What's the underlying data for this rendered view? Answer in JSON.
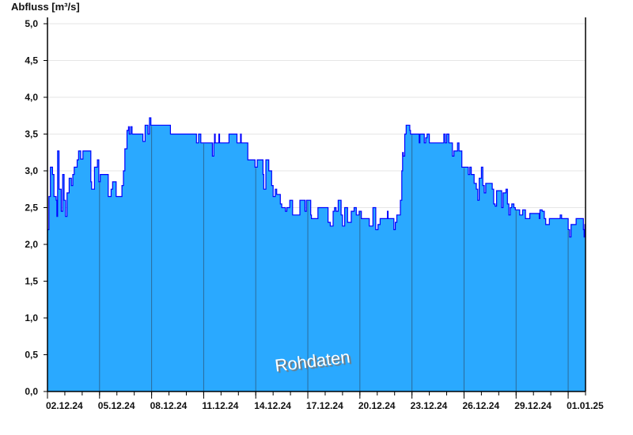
{
  "chart_data": {
    "type": "area",
    "ylabel": "Abfluss [m³/s]",
    "ylim": [
      0,
      5
    ],
    "yticks": [
      "0,0",
      "0,5",
      "1,0",
      "1,5",
      "2,0",
      "2,5",
      "3,0",
      "3,5",
      "4,0",
      "4,5",
      "5,0"
    ],
    "xlim": [
      "02.12.24 00:00",
      "02.01.25 00:00"
    ],
    "xticks": [
      "02.12.24",
      "05.12.24",
      "08.12.24",
      "11.12.24",
      "14.12.24",
      "17.12.24",
      "20.12.24",
      "23.12.24",
      "26.12.24",
      "29.12.24",
      "01.01.25"
    ],
    "grid": true,
    "annotation": "Rohdaten",
    "colors": {
      "fill": "#2aa9ff",
      "line": "#0000ff",
      "grid": "#e6e6e6",
      "major_line": "#2a6a9a"
    },
    "series": [
      {
        "points": [
          [
            "02.12.24 00:00",
            2.2
          ],
          [
            "02.12.24 02:00",
            2.65
          ],
          [
            "02.12.24 04:00",
            3.05
          ],
          [
            "02.12.24 07:00",
            2.95
          ],
          [
            "02.12.24 09:00",
            2.65
          ],
          [
            "02.12.24 12:00",
            2.6
          ],
          [
            "02.12.24 13:00",
            2.38
          ],
          [
            "02.12.24 14:00",
            3.27
          ],
          [
            "02.12.24 16:00",
            2.75
          ],
          [
            "02.12.24 19:00",
            2.45
          ],
          [
            "02.12.24 21:00",
            2.95
          ],
          [
            "02.12.24 23:00",
            2.6
          ],
          [
            "03.12.24 01:00",
            2.38
          ],
          [
            "03.12.24 03:00",
            2.7
          ],
          [
            "03.12.24 06:00",
            2.9
          ],
          [
            "03.12.24 09:00",
            2.8
          ],
          [
            "03.12.24 11:00",
            2.95
          ],
          [
            "03.12.24 13:00",
            3.05
          ],
          [
            "03.12.24 17:00",
            3.15
          ],
          [
            "03.12.24 19:00",
            3.27
          ],
          [
            "03.12.24 22:00",
            3.16
          ],
          [
            "04.12.24 01:00",
            3.27
          ],
          [
            "04.12.24 10:00",
            3.27
          ],
          [
            "04.12.24 12:00",
            2.85
          ],
          [
            "04.12.24 13:00",
            2.75
          ],
          [
            "04.12.24 17:00",
            3.05
          ],
          [
            "04.12.24 21:00",
            3.15
          ],
          [
            "04.12.24 23:00",
            2.85
          ],
          [
            "05.12.24 01:00",
            2.95
          ],
          [
            "05.12.24 09:00",
            2.95
          ],
          [
            "05.12.24 12:00",
            2.65
          ],
          [
            "05.12.24 16:00",
            2.75
          ],
          [
            "05.12.24 18:00",
            2.85
          ],
          [
            "05.12.24 21:00",
            2.85
          ],
          [
            "05.12.24 23:00",
            2.65
          ],
          [
            "06.12.24 05:00",
            2.65
          ],
          [
            "06.12.24 07:00",
            2.8
          ],
          [
            "06.12.24 09:00",
            3.0
          ],
          [
            "06.12.24 11:00",
            3.3
          ],
          [
            "06.12.24 14:00",
            3.55
          ],
          [
            "06.12.24 16:00",
            3.6
          ],
          [
            "06.12.24 17:00",
            3.5
          ],
          [
            "06.12.24 19:00",
            3.6
          ],
          [
            "06.12.24 21:00",
            3.5
          ],
          [
            "07.12.24 09:00",
            3.5
          ],
          [
            "07.12.24 12:00",
            3.4
          ],
          [
            "07.12.24 15:00",
            3.62
          ],
          [
            "07.12.24 17:00",
            3.62
          ],
          [
            "07.12.24 19:00",
            3.5
          ],
          [
            "07.12.24 21:00",
            3.72
          ],
          [
            "07.12.24 23:00",
            3.62
          ],
          [
            "09.12.24 00:00",
            3.62
          ],
          [
            "09.12.24 02:00",
            3.5
          ],
          [
            "10.12.24 12:00",
            3.5
          ],
          [
            "10.12.24 14:00",
            3.38
          ],
          [
            "10.12.24 17:00",
            3.5
          ],
          [
            "10.12.24 20:00",
            3.38
          ],
          [
            "11.12.24 11:00",
            3.38
          ],
          [
            "11.12.24 12:00",
            3.2
          ],
          [
            "11.12.24 14:00",
            3.38
          ],
          [
            "11.12.24 15:00",
            3.5
          ],
          [
            "11.12.24 16:00",
            3.38
          ],
          [
            "11.12.24 21:00",
            3.5
          ],
          [
            "11.12.24 22:00",
            3.38
          ],
          [
            "12.12.24 11:00",
            3.5
          ],
          [
            "12.12.24 20:00",
            3.5
          ],
          [
            "12.12.24 22:00",
            3.38
          ],
          [
            "13.12.24 02:00",
            3.38
          ],
          [
            "13.12.24 03:00",
            3.5
          ],
          [
            "13.12.24 04:00",
            3.38
          ],
          [
            "13.12.24 11:00",
            3.38
          ],
          [
            "13.12.24 13:00",
            3.15
          ],
          [
            "13.12.24 23:00",
            3.05
          ],
          [
            "14.12.24 02:00",
            3.15
          ],
          [
            "14.12.24 10:00",
            2.95
          ],
          [
            "14.12.24 11:00",
            2.75
          ],
          [
            "14.12.24 14:00",
            3.15
          ],
          [
            "14.12.24 18:00",
            3.0
          ],
          [
            "14.12.24 22:00",
            2.8
          ],
          [
            "15.12.24 00:00",
            2.65
          ],
          [
            "15.12.24 03:00",
            2.75
          ],
          [
            "15.12.24 05:00",
            2.68
          ],
          [
            "15.12.24 10:00",
            2.55
          ],
          [
            "15.12.24 12:00",
            2.5
          ],
          [
            "15.12.24 17:00",
            2.45
          ],
          [
            "15.12.24 19:00",
            2.5
          ],
          [
            "15.12.24 23:00",
            2.6
          ],
          [
            "16.12.24 03:00",
            2.4
          ],
          [
            "16.12.24 13:00",
            2.6
          ],
          [
            "16.12.24 20:00",
            2.45
          ],
          [
            "16.12.24 22:00",
            2.6
          ],
          [
            "17.12.24 04:00",
            2.4
          ],
          [
            "17.12.24 05:00",
            2.35
          ],
          [
            "17.12.24 12:00",
            2.35
          ],
          [
            "17.12.24 14:00",
            2.5
          ],
          [
            "18.12.24 01:00",
            2.5
          ],
          [
            "18.12.24 04:00",
            2.3
          ],
          [
            "18.12.24 07:00",
            2.25
          ],
          [
            "18.12.24 11:00",
            2.45
          ],
          [
            "18.12.24 13:00",
            2.5
          ],
          [
            "18.12.24 15:00",
            2.45
          ],
          [
            "18.12.24 18:00",
            2.6
          ],
          [
            "18.12.24 22:00",
            2.4
          ],
          [
            "19.12.24 00:00",
            2.25
          ],
          [
            "19.12.24 03:00",
            2.5
          ],
          [
            "19.12.24 07:00",
            2.3
          ],
          [
            "19.12.24 12:00",
            2.45
          ],
          [
            "19.12.24 16:00",
            2.5
          ],
          [
            "19.12.24 19:00",
            2.4
          ],
          [
            "19.12.24 23:00",
            2.45
          ],
          [
            "20.12.24 02:00",
            2.35
          ],
          [
            "20.12.24 10:00",
            2.35
          ],
          [
            "20.12.24 13:00",
            2.25
          ],
          [
            "20.12.24 17:00",
            2.25
          ],
          [
            "20.12.24 18:00",
            2.5
          ],
          [
            "20.12.24 22:00",
            2.2
          ],
          [
            "21.12.24 01:00",
            2.27
          ],
          [
            "21.12.24 04:00",
            2.35
          ],
          [
            "21.12.24 12:00",
            2.35
          ],
          [
            "21.12.24 14:00",
            2.45
          ],
          [
            "21.12.24 15:00",
            2.35
          ],
          [
            "21.12.24 21:00",
            2.35
          ],
          [
            "21.12.24 23:00",
            2.2
          ],
          [
            "22.12.24 01:00",
            2.3
          ],
          [
            "22.12.24 03:00",
            2.4
          ],
          [
            "22.12.24 05:00",
            2.4
          ],
          [
            "22.12.24 08:00",
            2.6
          ],
          [
            "22.12.24 10:00",
            3.0
          ],
          [
            "22.12.24 11:00",
            3.25
          ],
          [
            "22.12.24 12:00",
            3.2
          ],
          [
            "22.12.24 14:00",
            3.5
          ],
          [
            "22.12.24 16:00",
            3.62
          ],
          [
            "22.12.24 21:00",
            3.55
          ],
          [
            "22.12.24 22:00",
            3.5
          ],
          [
            "23.12.24 08:00",
            3.5
          ],
          [
            "23.12.24 10:00",
            3.38
          ],
          [
            "23.12.24 11:00",
            3.5
          ],
          [
            "23.12.24 14:00",
            3.5
          ],
          [
            "23.12.24 17:00",
            3.38
          ],
          [
            "23.12.24 19:00",
            3.45
          ],
          [
            "23.12.24 21:00",
            3.5
          ],
          [
            "23.12.24 23:00",
            3.5
          ],
          [
            "24.12.24 00:00",
            3.38
          ],
          [
            "24.12.24 18:00",
            3.38
          ],
          [
            "24.12.24 20:00",
            3.5
          ],
          [
            "24.12.24 22:00",
            3.38
          ],
          [
            "25.12.24 00:00",
            3.5
          ],
          [
            "25.12.24 03:00",
            3.38
          ],
          [
            "25.12.24 06:00",
            3.38
          ],
          [
            "25.12.24 08:00",
            3.2
          ],
          [
            "25.12.24 10:00",
            3.27
          ],
          [
            "25.12.24 12:00",
            3.27
          ],
          [
            "25.12.24 15:00",
            3.38
          ],
          [
            "25.12.24 17:00",
            3.27
          ],
          [
            "25.12.24 20:00",
            3.27
          ],
          [
            "25.12.24 21:00",
            3.05
          ],
          [
            "26.12.24 04:00",
            3.05
          ],
          [
            "26.12.24 06:00",
            2.95
          ],
          [
            "26.12.24 08:00",
            3.05
          ],
          [
            "26.12.24 10:00",
            2.95
          ],
          [
            "26.12.24 14:00",
            2.83
          ],
          [
            "26.12.24 17:00",
            2.75
          ],
          [
            "26.12.24 19:00",
            2.6
          ],
          [
            "26.12.24 21:00",
            2.9
          ],
          [
            "27.12.24 00:00",
            3.05
          ],
          [
            "27.12.24 02:00",
            2.8
          ],
          [
            "27.12.24 04:00",
            2.7
          ],
          [
            "27.12.24 06:00",
            2.83
          ],
          [
            "27.12.24 13:00",
            2.83
          ],
          [
            "27.12.24 15:00",
            2.75
          ],
          [
            "27.12.24 17:00",
            2.55
          ],
          [
            "27.12.24 19:00",
            2.52
          ],
          [
            "27.12.24 21:00",
            2.73
          ],
          [
            "28.12.24 03:00",
            2.73
          ],
          [
            "28.12.24 04:00",
            2.5
          ],
          [
            "28.12.24 06:00",
            2.7
          ],
          [
            "28.12.24 10:00",
            2.75
          ],
          [
            "28.12.24 12:00",
            2.55
          ],
          [
            "28.12.24 14:00",
            2.4
          ],
          [
            "28.12.24 16:00",
            2.5
          ],
          [
            "28.12.24 18:00",
            2.55
          ],
          [
            "28.12.24 21:00",
            2.5
          ],
          [
            "28.12.24 23:00",
            2.47
          ],
          [
            "29.12.24 02:00",
            2.47
          ],
          [
            "29.12.24 05:00",
            2.4
          ],
          [
            "29.12.24 09:00",
            2.47
          ],
          [
            "29.12.24 11:00",
            2.47
          ],
          [
            "29.12.24 13:00",
            2.35
          ],
          [
            "29.12.24 17:00",
            2.35
          ],
          [
            "29.12.24 19:00",
            2.42
          ],
          [
            "30.12.24 06:00",
            2.42
          ],
          [
            "30.12.24 08:00",
            2.35
          ],
          [
            "30.12.24 09:00",
            2.47
          ],
          [
            "30.12.24 12:00",
            2.45
          ],
          [
            "30.12.24 15:00",
            2.35
          ],
          [
            "30.12.24 17:00",
            2.27
          ],
          [
            "30.12.24 21:00",
            2.27
          ],
          [
            "30.12.24 22:00",
            2.35
          ],
          [
            "31.12.24 11:00",
            2.35
          ],
          [
            "31.12.24 13:00",
            2.4
          ],
          [
            "31.12.24 15:00",
            2.35
          ],
          [
            "31.12.24 22:00",
            2.35
          ],
          [
            "01.01.25 00:00",
            2.2
          ],
          [
            "01.01.25 02:00",
            2.1
          ],
          [
            "01.01.25 04:00",
            2.27
          ],
          [
            "01.01.25 09:00",
            2.27
          ],
          [
            "01.01.25 11:00",
            2.35
          ],
          [
            "01.01.25 20:00",
            2.35
          ],
          [
            "01.01.25 21:00",
            2.2
          ],
          [
            "01.01.25 22:00",
            2.1
          ],
          [
            "01.01.25 23:00",
            2.27
          ]
        ]
      }
    ]
  }
}
